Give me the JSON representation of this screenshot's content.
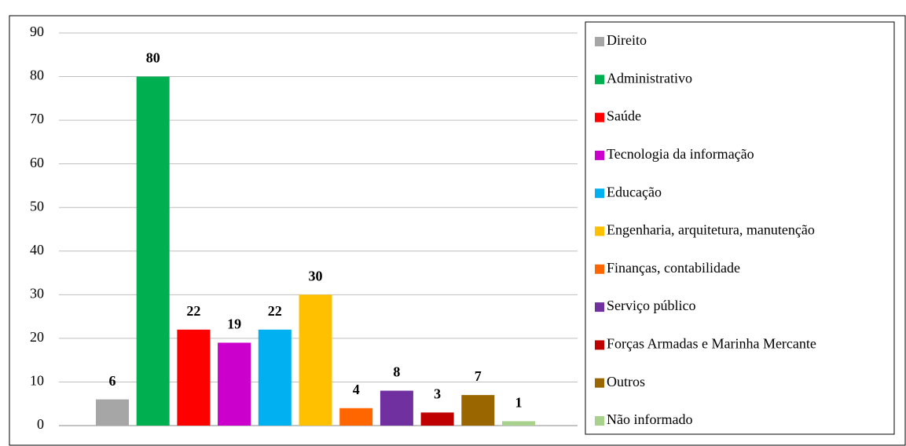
{
  "chart_data": {
    "type": "bar",
    "categories": [
      "Direito",
      "Administrativo",
      "Saúde",
      "Tecnologia da informação",
      "Educação",
      "Engenharia, arquitetura, manutenção",
      "Finanças, contabilidade",
      "Serviço público",
      "Forças Armadas e Marinha Mercante",
      "Outros",
      "Não informado"
    ],
    "values": [
      6,
      80,
      22,
      19,
      22,
      30,
      4,
      8,
      3,
      7,
      1
    ],
    "colors": [
      "#a6a6a6",
      "#00b050",
      "#ff0000",
      "#cc00cc",
      "#00b0f0",
      "#ffc000",
      "#ff6600",
      "#7030a0",
      "#c00000",
      "#996600",
      "#a9d18e"
    ],
    "ylim": [
      0,
      90
    ],
    "yticks": [
      0,
      10,
      20,
      30,
      40,
      50,
      60,
      70,
      80,
      90
    ],
    "grid": true,
    "legend": "right"
  }
}
